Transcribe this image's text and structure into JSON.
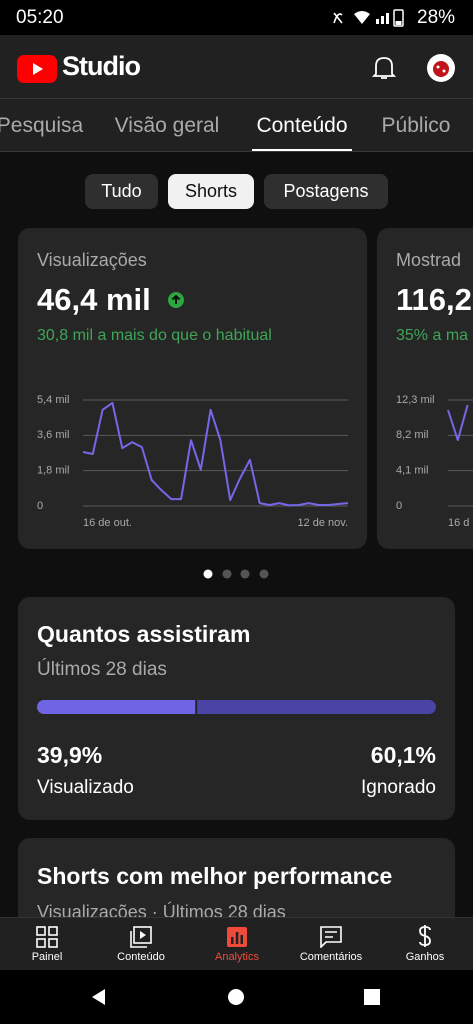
{
  "status_bar": {
    "time": "05:20",
    "battery": "28%"
  },
  "header": {
    "app_name": "Studio"
  },
  "tabs": [
    "Pesquisa",
    "Visão geral",
    "Conteúdo",
    "Público"
  ],
  "filters": [
    "Tudo",
    "Shorts",
    "Postagens"
  ],
  "cards": [
    {
      "title": "Visualizações",
      "value": "46,4 mil",
      "comparison": "30,8 mil a mais do que o habitual",
      "chart_data": {
        "type": "line",
        "categories": [
          "16 de out.",
          null,
          null,
          null,
          null,
          null,
          null,
          null,
          null,
          null,
          null,
          null,
          null,
          null,
          null,
          null,
          null,
          null,
          null,
          null,
          null,
          null,
          null,
          null,
          null,
          null,
          null,
          "12 de nov."
        ],
        "values": [
          2750,
          2650,
          4900,
          5250,
          2950,
          3250,
          3000,
          1320,
          800,
          350,
          350,
          3350,
          1850,
          4900,
          3350,
          300,
          1400,
          2350,
          150,
          50,
          150,
          30,
          50,
          150,
          50,
          50,
          100,
          150
        ],
        "color": "#7468e8",
        "ylim": [
          0,
          5400
        ],
        "yticks": [
          0,
          {
            "value": 1800,
            "label": "1,8 mil"
          },
          {
            "value": 3600,
            "label": "3,6 mil"
          },
          {
            "value": 5400,
            "label": "5,4 mil"
          }
        ],
        "grid": true
      }
    },
    {
      "title": "Mostrad",
      "value": "116,2",
      "comparison": "35% a ma",
      "chart_data": {
        "type": "line",
        "categories": [
          "16 d",
          null,
          null
        ],
        "values": [
          11140,
          7650,
          11720
        ],
        "color": "#7468e8",
        "ylim": [
          0,
          12300
        ],
        "yticks": [
          0,
          {
            "value": 4100,
            "label": "4,1 mil"
          },
          {
            "value": 8200,
            "label": "8,2 mil"
          },
          {
            "value": 12300,
            "label": "12,3 mil"
          }
        ],
        "grid": true
      }
    }
  ],
  "retention": {
    "title": "Quantos assistiram",
    "subtitle": "Últimos 28 dias",
    "segments": [
      {
        "name": "Visualizado",
        "value": 39.9,
        "value_label": "39,9%",
        "color": "#6e64e4"
      },
      {
        "name": "Ignorado",
        "value": 60.1,
        "value_label": "60,1%",
        "color": "#4a44a6"
      }
    ]
  },
  "top_shorts": {
    "title": "Shorts com melhor performance",
    "subtitle": "Visualizações · Últimos 28 dias"
  },
  "bottom_nav": [
    "Painel",
    "Conteúdo",
    "Analytics",
    "Comentários",
    "Ganhos"
  ]
}
